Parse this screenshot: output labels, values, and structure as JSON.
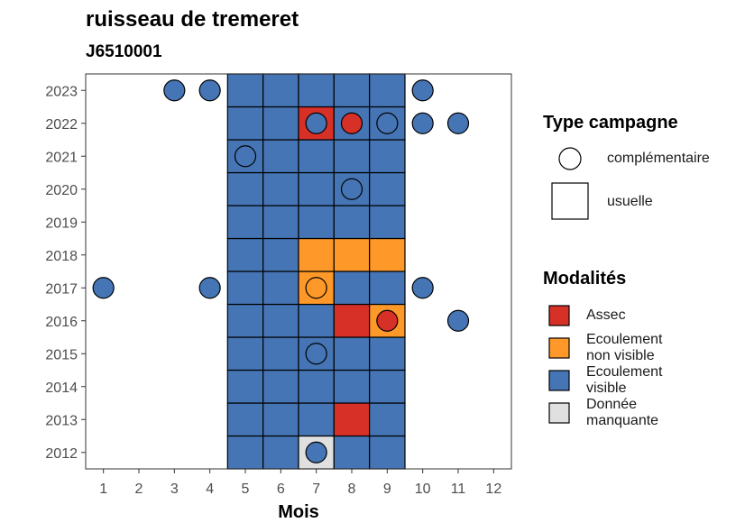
{
  "colors": {
    "Assec": "#d73027",
    "Ecoulement non visible": "#fe9929",
    "Ecoulement visible": "#4575b4",
    "Donnée manquante": "#e0e0e0"
  },
  "legend": {
    "campaign_title": "Type campagne",
    "campaign_items": [
      {
        "label": "complémentaire",
        "shape": "circle"
      },
      {
        "label": "usuelle",
        "shape": "square"
      }
    ],
    "modalites_title": "Modalités",
    "modalites_items": [
      {
        "line1": "Assec",
        "line2": ""
      },
      {
        "line1": "Ecoulement",
        "line2": "non visible"
      },
      {
        "line1": "Ecoulement",
        "line2": "visible"
      },
      {
        "line1": "Donnée",
        "line2": "manquante"
      }
    ]
  },
  "chart_data": {
    "type": "heatmap",
    "title": "ruisseau de tremeret",
    "subtitle": "J6510001",
    "xlabel": "Mois",
    "ylabel": "",
    "x_ticks": [
      1,
      2,
      3,
      4,
      5,
      6,
      7,
      8,
      9,
      10,
      11,
      12
    ],
    "y_ticks": [
      2012,
      2013,
      2014,
      2015,
      2016,
      2017,
      2018,
      2019,
      2020,
      2021,
      2022,
      2023
    ],
    "xlim": [
      0.5,
      12.5
    ],
    "ylim": [
      2011.5,
      2023.5
    ],
    "usuelle_months": [
      5,
      6,
      7,
      8,
      9
    ],
    "usuelle_default": "Ecoulement visible",
    "usuelle_exceptions": [
      {
        "year": 2022,
        "month": 7,
        "value": "Assec"
      },
      {
        "year": 2018,
        "month": 7,
        "value": "Ecoulement non visible"
      },
      {
        "year": 2018,
        "month": 8,
        "value": "Ecoulement non visible"
      },
      {
        "year": 2018,
        "month": 9,
        "value": "Ecoulement non visible"
      },
      {
        "year": 2017,
        "month": 7,
        "value": "Ecoulement non visible"
      },
      {
        "year": 2016,
        "month": 8,
        "value": "Assec"
      },
      {
        "year": 2016,
        "month": 9,
        "value": "Ecoulement non visible"
      },
      {
        "year": 2013,
        "month": 8,
        "value": "Assec"
      },
      {
        "year": 2012,
        "month": 7,
        "value": "Donnée manquante"
      }
    ],
    "complementaire": [
      {
        "year": 2023,
        "month": 3,
        "value": "Ecoulement visible"
      },
      {
        "year": 2023,
        "month": 4,
        "value": "Ecoulement visible"
      },
      {
        "year": 2023,
        "month": 10,
        "value": "Ecoulement visible"
      },
      {
        "year": 2022,
        "month": 7,
        "value": "Ecoulement visible"
      },
      {
        "year": 2022,
        "month": 8,
        "value": "Assec"
      },
      {
        "year": 2022,
        "month": 9,
        "value": "Ecoulement visible"
      },
      {
        "year": 2022,
        "month": 10,
        "value": "Ecoulement visible"
      },
      {
        "year": 2022,
        "month": 11,
        "value": "Ecoulement visible"
      },
      {
        "year": 2021,
        "month": 5,
        "value": "Ecoulement visible"
      },
      {
        "year": 2020,
        "month": 8,
        "value": "Ecoulement visible"
      },
      {
        "year": 2017,
        "month": 1,
        "value": "Ecoulement visible"
      },
      {
        "year": 2017,
        "month": 4,
        "value": "Ecoulement visible"
      },
      {
        "year": 2017,
        "month": 7,
        "value": "Ecoulement non visible"
      },
      {
        "year": 2017,
        "month": 10,
        "value": "Ecoulement visible"
      },
      {
        "year": 2016,
        "month": 9,
        "value": "Assec"
      },
      {
        "year": 2016,
        "month": 11,
        "value": "Ecoulement visible"
      },
      {
        "year": 2015,
        "month": 7,
        "value": "Ecoulement visible"
      },
      {
        "year": 2012,
        "month": 7,
        "value": "Ecoulement visible"
      }
    ]
  }
}
